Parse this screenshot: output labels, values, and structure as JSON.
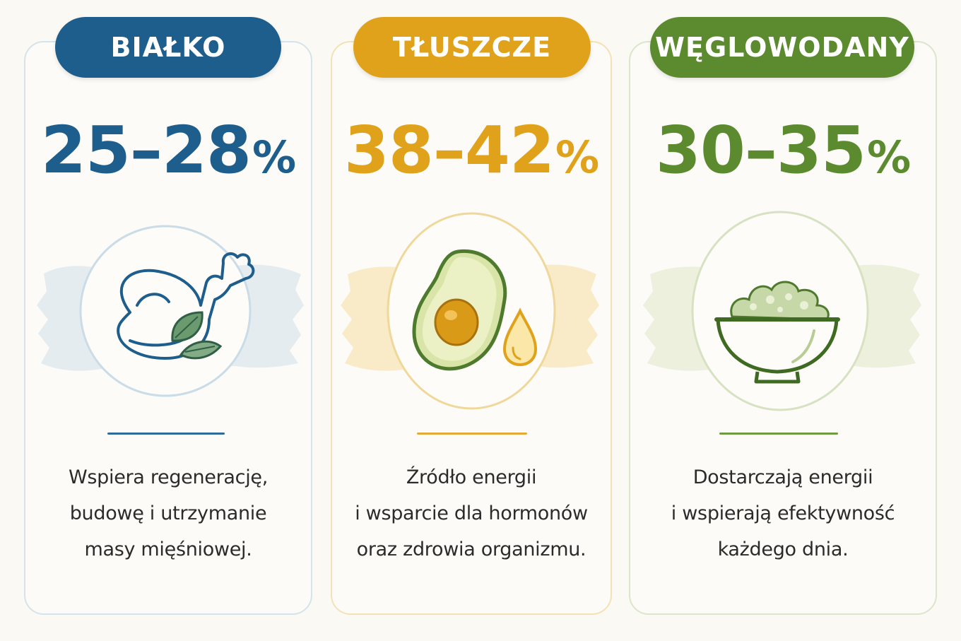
{
  "colors": {
    "protein": "#1e5e8c",
    "fat": "#e0a21a",
    "carbs": "#5b8a2f",
    "card_border_protein": "#d4e4ec",
    "card_border_fat": "#f4e2b6",
    "card_border_carbs": "#dbe6cb"
  },
  "cards": [
    {
      "label": "BIAŁKO",
      "range": "25–28",
      "unit": "%",
      "icon": "chicken-leg-icon",
      "desc": [
        "Wspiera regenerację,",
        "budowę i utrzymanie",
        "masy mięśniowej."
      ]
    },
    {
      "label": "TŁUSZCZE",
      "range": "38–42",
      "unit": "%",
      "icon": "avocado-oil-drop-icon",
      "desc": [
        "Źródło energii",
        "i wsparcie dla hormonów",
        "oraz zdrowia organizmu."
      ]
    },
    {
      "label": "WĘGLOWODANY",
      "range": "30–35",
      "unit": "%",
      "icon": "grain-bowl-icon",
      "desc": [
        "Dostarczają energii",
        "i wspierają efektywność",
        "każdego dnia."
      ]
    }
  ]
}
